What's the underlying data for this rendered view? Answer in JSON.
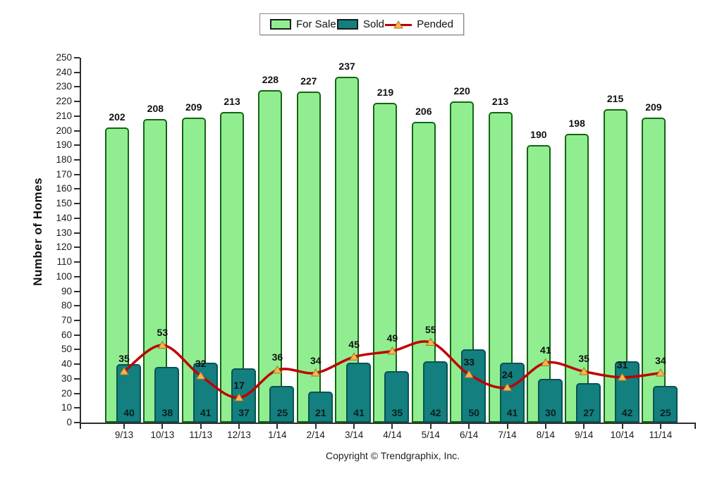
{
  "legend": {
    "for_sale_label": "For Sale",
    "sold_label": "Sold",
    "pended_label": "Pended"
  },
  "footer": {
    "copyright": "Copyright © Trendgraphix, Inc."
  },
  "chart_data": {
    "type": "bar",
    "title": "",
    "xlabel": "",
    "ylabel": "Number of Homes",
    "ylim": [
      0,
      250
    ],
    "ytick_step": 10,
    "grid": false,
    "legend_position": "top-center",
    "categories": [
      "9/13",
      "10/13",
      "11/13",
      "12/13",
      "1/14",
      "2/14",
      "3/14",
      "4/14",
      "5/14",
      "6/14",
      "7/14",
      "8/14",
      "9/14",
      "10/14",
      "11/14"
    ],
    "series": [
      {
        "name": "For Sale",
        "type": "bar",
        "color": "#90EE90",
        "border_color": "#156415",
        "values": [
          202,
          208,
          209,
          213,
          228,
          227,
          237,
          219,
          206,
          220,
          213,
          190,
          198,
          215,
          209
        ]
      },
      {
        "name": "Sold",
        "type": "bar",
        "color": "#137F7F",
        "border_color": "#0A5252",
        "values": [
          40,
          38,
          41,
          37,
          25,
          21,
          41,
          35,
          42,
          50,
          41,
          30,
          27,
          42,
          25
        ]
      },
      {
        "name": "Pended",
        "type": "line",
        "color": "#C00000",
        "marker": "triangle",
        "marker_color": "#FFB14E",
        "marker_border_color": "#9A7A2A",
        "values": [
          35,
          53,
          32,
          17,
          36,
          34,
          45,
          49,
          55,
          33,
          24,
          41,
          35,
          31,
          34
        ]
      }
    ]
  }
}
